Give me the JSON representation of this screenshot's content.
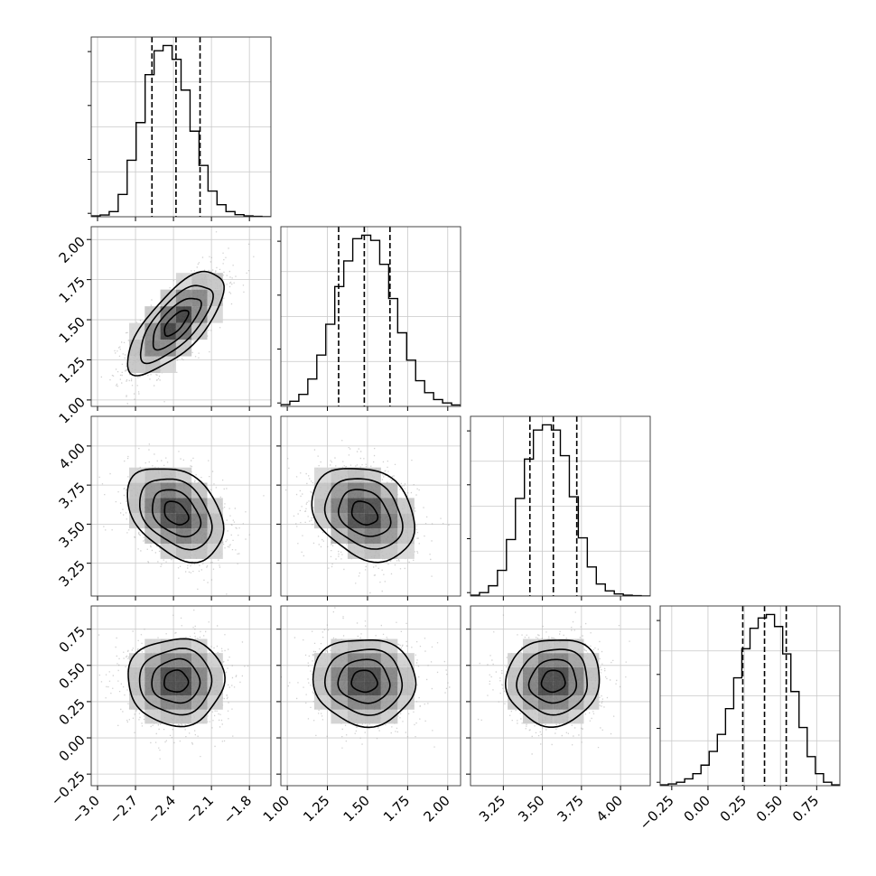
{
  "chart_data": {
    "type": "corner",
    "params": [
      {
        "mean": -2.38,
        "sd": 0.19,
        "range": [
          -3.05,
          -1.63
        ],
        "q": [
          -2.57,
          -2.38,
          -2.19
        ],
        "ticks": [
          -3.0,
          -2.7,
          -2.4,
          -2.1,
          -1.8
        ],
        "tick_labels": [
          "−3.0",
          "−2.7",
          "−2.4",
          "−2.1",
          "−1.8"
        ],
        "hist": [
          0.005,
          0.01,
          0.03,
          0.13,
          0.33,
          0.55,
          0.83,
          0.97,
          1.0,
          0.92,
          0.74,
          0.5,
          0.3,
          0.15,
          0.07,
          0.03,
          0.012,
          0.005,
          0.002,
          0.0
        ]
      },
      {
        "mean": 1.48,
        "sd": 0.16,
        "range": [
          0.96,
          2.08
        ],
        "q": [
          1.32,
          1.48,
          1.64
        ],
        "ticks": [
          1.0,
          1.25,
          1.5,
          1.75,
          2.0
        ],
        "tick_labels": [
          "1.00",
          "1.25",
          "1.50",
          "1.75",
          "2.00"
        ],
        "hist": [
          0.01,
          0.03,
          0.07,
          0.16,
          0.3,
          0.48,
          0.7,
          0.85,
          0.98,
          1.0,
          0.97,
          0.83,
          0.63,
          0.43,
          0.27,
          0.15,
          0.08,
          0.04,
          0.02,
          0.008
        ]
      },
      {
        "mean": 3.57,
        "sd": 0.15,
        "range": [
          3.04,
          4.19
        ],
        "q": [
          3.42,
          3.57,
          3.72
        ],
        "ticks": [
          3.25,
          3.5,
          3.75,
          4.0
        ],
        "tick_labels": [
          "3.25",
          "3.50",
          "3.75",
          "4.00"
        ],
        "hist": [
          0.005,
          0.02,
          0.06,
          0.15,
          0.33,
          0.57,
          0.8,
          0.97,
          1.0,
          0.97,
          0.82,
          0.58,
          0.34,
          0.17,
          0.07,
          0.03,
          0.012,
          0.005,
          0.002,
          0.0
        ]
      },
      {
        "mean": 0.39,
        "sd": 0.15,
        "range": [
          -0.33,
          0.91
        ],
        "q": [
          0.24,
          0.39,
          0.54
        ],
        "ticks": [
          -0.25,
          0.0,
          0.25,
          0.5,
          0.75
        ],
        "tick_labels": [
          "−0.25",
          "0.00",
          "0.25",
          "0.50",
          "0.75"
        ],
        "hist": [
          0.005,
          0.01,
          0.02,
          0.04,
          0.07,
          0.12,
          0.2,
          0.3,
          0.45,
          0.63,
          0.8,
          0.92,
          0.98,
          1.0,
          0.93,
          0.77,
          0.55,
          0.34,
          0.17,
          0.07,
          0.02,
          0.005
        ]
      }
    ],
    "correlations": {
      "1-0": 0.72,
      "2-0": -0.35,
      "2-1": -0.25,
      "3-0": 0.0,
      "3-1": -0.05,
      "3-2": 0.05
    },
    "contour_levels_sigma": [
      0.5,
      1.0,
      1.5,
      2.0
    ],
    "colors": {
      "line": "#000000",
      "grid": "#c8c8c8",
      "points": "#9a9a9a"
    }
  }
}
